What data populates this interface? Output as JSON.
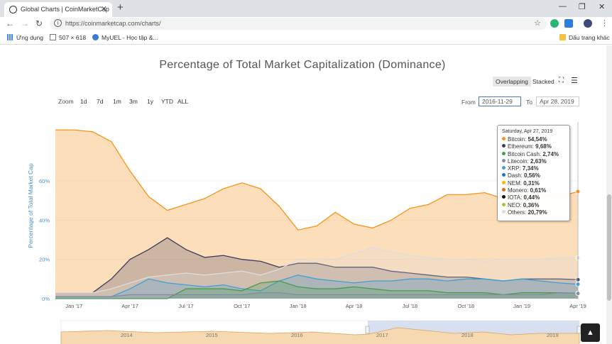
{
  "browser": {
    "tab_title": "Global Charts | CoinMarketCap",
    "url": "https://coinmarketcap.com/charts/",
    "bookmarks": [
      "Ứng dụng",
      "507 × 618",
      "MyUEL - Học tập &...",
      "Dấu trang khác"
    ]
  },
  "page": {
    "title": "Percentage of Total Market Capitalization (Dominance)",
    "view_overlapping": "Overlapping",
    "view_stacked": "Stacked",
    "zoom_label": "Zoom",
    "zoom_buttons": [
      "1d",
      "7d",
      "1m",
      "3m",
      "1y",
      "YTD",
      "ALL"
    ],
    "from_label": "From",
    "from_value": "2016-11-29",
    "to_label": "To",
    "to_value": "Apr 28, 2019"
  },
  "tooltip": {
    "date": "Saturday, Apr 27, 2019",
    "rows": [
      {
        "name": "Bitcoin",
        "value": "54,54%",
        "color": "#f7931a"
      },
      {
        "name": "Ethereum",
        "value": "9,68%",
        "color": "#3c3c5d"
      },
      {
        "name": "Bitcoin Cash",
        "value": "2,74%",
        "color": "#4a9a4a"
      },
      {
        "name": "Litecoin",
        "value": "2,63%",
        "color": "#7f8fa0"
      },
      {
        "name": "XRP",
        "value": "7,34%",
        "color": "#3ea0d8"
      },
      {
        "name": "Dash",
        "value": "0,56%",
        "color": "#1c75bc"
      },
      {
        "name": "NEM",
        "value": "0,31%",
        "color": "#f0b90b"
      },
      {
        "name": "Monero",
        "value": "0,61%",
        "color": "#e06a1a"
      },
      {
        "name": "IOTA",
        "value": "0,44%",
        "color": "#111111"
      },
      {
        "name": "NEO",
        "value": "0,36%",
        "color": "#9acd32"
      },
      {
        "name": "Others",
        "value": "20,79%",
        "color": "#dddddd"
      }
    ]
  },
  "chart_data": {
    "type": "area",
    "title": "Percentage of Total Market Capitalization (Dominance)",
    "ylabel": "Percentage of Total Market Cap",
    "yticks": [
      "0%",
      "20%",
      "40%",
      "60%"
    ],
    "xticks": [
      "Jan '17",
      "Apr '17",
      "Jul '17",
      "Oct '17",
      "Jan '18",
      "Apr '18",
      "Jul '18",
      "Oct '18",
      "Jan '19",
      "Apr '19"
    ],
    "navigator_ticks": [
      "2014",
      "2015",
      "2016",
      "2017",
      "2018",
      "2019"
    ],
    "ylim": [
      0,
      90
    ],
    "x": [
      "2016-12",
      "2017-01",
      "2017-02",
      "2017-03",
      "2017-04",
      "2017-05",
      "2017-06",
      "2017-07",
      "2017-08",
      "2017-09",
      "2017-10",
      "2017-11",
      "2017-12",
      "2018-01",
      "2018-02",
      "2018-03",
      "2018-04",
      "2018-05",
      "2018-06",
      "2018-07",
      "2018-08",
      "2018-09",
      "2018-10",
      "2018-11",
      "2018-12",
      "2019-01",
      "2019-02",
      "2019-03",
      "2019-04"
    ],
    "series": [
      {
        "name": "Bitcoin",
        "color": "#f7931a",
        "values": [
          86,
          86,
          85,
          80,
          65,
          52,
          45,
          48,
          51,
          56,
          59,
          56,
          47,
          35,
          37,
          44,
          38,
          36,
          40,
          46,
          48,
          53,
          53,
          54,
          51,
          52,
          53,
          52,
          54.54
        ]
      },
      {
        "name": "Ethereum",
        "color": "#3c3c5d",
        "values": [
          3,
          3,
          3,
          10,
          20,
          25,
          31,
          25,
          21,
          22,
          20,
          19,
          16,
          18,
          18,
          16,
          16,
          16,
          14,
          13,
          12,
          11,
          11,
          10,
          9,
          10,
          10,
          10,
          9.68
        ]
      },
      {
        "name": "Others",
        "color": "#dddddd",
        "values": [
          3,
          3,
          3,
          5,
          8,
          11,
          12,
          13,
          12,
          13,
          14,
          12,
          15,
          20,
          19,
          20,
          23,
          26,
          24,
          22,
          21,
          20,
          20,
          19,
          20,
          20,
          20,
          21,
          20.79
        ]
      },
      {
        "name": "XRP",
        "color": "#3ea0d8",
        "values": [
          1,
          1,
          1,
          1,
          5,
          10,
          8,
          7,
          6,
          7,
          5,
          4,
          9,
          12,
          10,
          9,
          8,
          9,
          9,
          10,
          10,
          9,
          10,
          10,
          9,
          10,
          9,
          8,
          7.34
        ]
      },
      {
        "name": "Bitcoin Cash",
        "color": "#4a9a4a",
        "values": [
          0,
          0,
          0,
          0,
          0,
          0,
          0,
          5,
          5,
          5,
          4,
          8,
          9,
          6,
          5,
          5,
          6,
          5,
          4,
          4,
          4,
          3,
          3,
          3,
          2,
          3,
          3,
          3,
          2.74
        ]
      },
      {
        "name": "Litecoin",
        "color": "#7f8fa0",
        "values": [
          1,
          1,
          1,
          1,
          2,
          2,
          2,
          2,
          2,
          2,
          2,
          3,
          3,
          2,
          2,
          2,
          2,
          2,
          2,
          2,
          2,
          2,
          2,
          2,
          2,
          2,
          2,
          3,
          2.63
        ]
      }
    ],
    "grid": true
  }
}
